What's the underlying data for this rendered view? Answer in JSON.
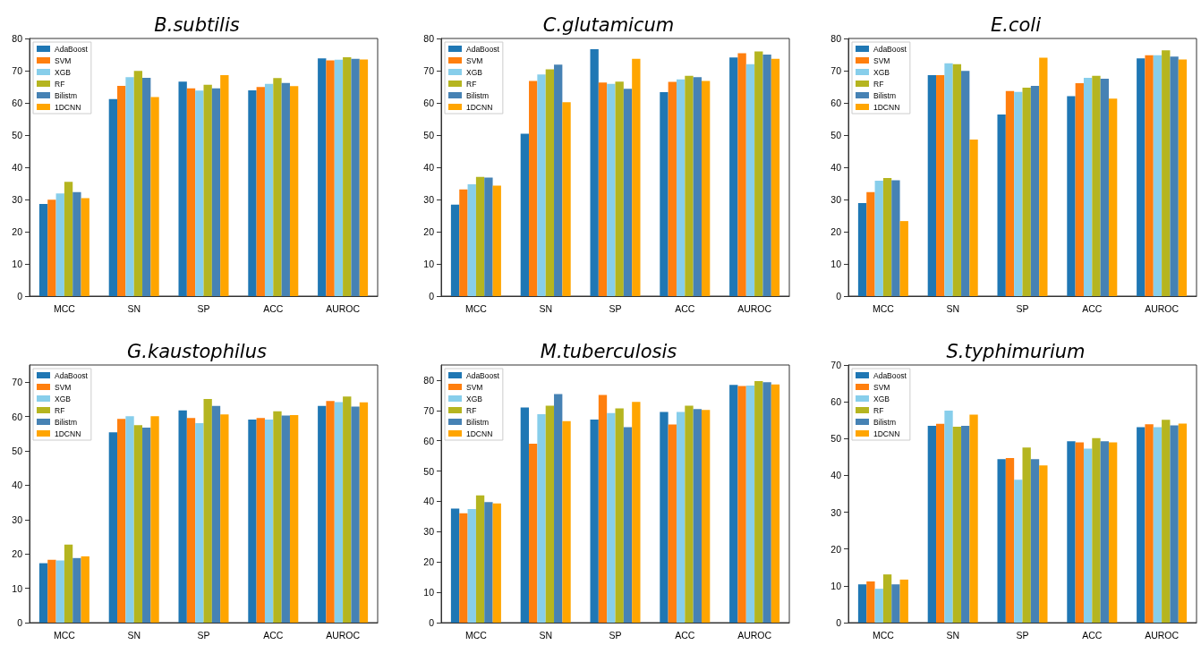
{
  "chart_data": [
    {
      "type": "bar",
      "title": "B.subtilis",
      "categories": [
        "MCC",
        "SN",
        "SP",
        "ACC",
        "AUROC"
      ],
      "ylim": [
        0,
        80
      ],
      "yticks": [
        0,
        10,
        20,
        30,
        40,
        50,
        60,
        70,
        80
      ],
      "grid": false,
      "legend": "top left",
      "series": [
        {
          "name": "AdaBoost",
          "color": "#1f77b4",
          "values": [
            28.6,
            61.2,
            66.6,
            63.9,
            73.8
          ]
        },
        {
          "name": "SVM",
          "color": "#ff7f0e",
          "values": [
            29.9,
            65.3,
            64.5,
            64.9,
            73.2
          ]
        },
        {
          "name": "XGB",
          "color": "#87ceeb",
          "values": [
            31.9,
            68.0,
            63.8,
            65.9,
            73.4
          ]
        },
        {
          "name": "RF",
          "color": "#b5b520",
          "values": [
            35.5,
            69.9,
            65.6,
            67.7,
            74.2
          ]
        },
        {
          "name": "Bilistm",
          "color": "#4682b4",
          "values": [
            32.3,
            67.8,
            64.5,
            66.2,
            73.7
          ]
        },
        {
          "name": "1DCNN",
          "color": "#ffa500",
          "values": [
            30.4,
            61.8,
            68.6,
            65.2,
            73.5
          ]
        }
      ]
    },
    {
      "type": "bar",
      "title": "C.glutamicum",
      "categories": [
        "MCC",
        "SN",
        "SP",
        "ACC",
        "AUROC"
      ],
      "ylim": [
        0,
        80
      ],
      "yticks": [
        0,
        10,
        20,
        30,
        40,
        50,
        60,
        70,
        80
      ],
      "grid": false,
      "legend": "top left",
      "series": [
        {
          "name": "AdaBoost",
          "color": "#1f77b4",
          "values": [
            28.4,
            50.4,
            76.7,
            63.3,
            74.1
          ]
        },
        {
          "name": "SVM",
          "color": "#ff7f0e",
          "values": [
            33.1,
            66.8,
            66.3,
            66.5,
            75.4
          ]
        },
        {
          "name": "XGB",
          "color": "#87ceeb",
          "values": [
            34.7,
            68.8,
            65.9,
            67.3,
            72.0
          ]
        },
        {
          "name": "RF",
          "color": "#b5b520",
          "values": [
            37.0,
            70.4,
            66.6,
            68.4,
            76.0
          ]
        },
        {
          "name": "Bilistm",
          "color": "#4682b4",
          "values": [
            36.8,
            71.9,
            64.4,
            68.0,
            75.0
          ]
        },
        {
          "name": "1DCNN",
          "color": "#ffa500",
          "values": [
            34.3,
            60.2,
            73.7,
            66.8,
            73.7
          ]
        }
      ]
    },
    {
      "type": "bar",
      "title": "E.coli",
      "categories": [
        "MCC",
        "SN",
        "SP",
        "ACC",
        "AUROC"
      ],
      "ylim": [
        0,
        80
      ],
      "yticks": [
        0,
        10,
        20,
        30,
        40,
        50,
        60,
        70,
        80
      ],
      "grid": false,
      "legend": "top left",
      "series": [
        {
          "name": "AdaBoost",
          "color": "#1f77b4",
          "values": [
            28.9,
            68.6,
            56.4,
            62.1,
            73.8
          ]
        },
        {
          "name": "SVM",
          "color": "#ff7f0e",
          "values": [
            32.3,
            68.6,
            63.7,
            66.1,
            74.8
          ]
        },
        {
          "name": "XGB",
          "color": "#87ceeb",
          "values": [
            35.8,
            72.3,
            63.4,
            67.8,
            74.8
          ]
        },
        {
          "name": "RF",
          "color": "#b5b520",
          "values": [
            36.7,
            72.0,
            64.7,
            68.4,
            76.3
          ]
        },
        {
          "name": "Bilistm",
          "color": "#4682b4",
          "values": [
            36.0,
            69.9,
            65.3,
            67.5,
            74.4
          ]
        },
        {
          "name": "1DCNN",
          "color": "#ffa500",
          "values": [
            23.3,
            48.6,
            74.0,
            61.3,
            73.5
          ]
        }
      ]
    },
    {
      "type": "bar",
      "title": "G.kaustophilus",
      "categories": [
        "MCC",
        "SN",
        "SP",
        "ACC",
        "AUROC"
      ],
      "ylim": [
        0,
        75
      ],
      "yticks": [
        0,
        10,
        20,
        30,
        40,
        50,
        60,
        70
      ],
      "grid": false,
      "legend": "top left",
      "series": [
        {
          "name": "AdaBoost",
          "color": "#1f77b4",
          "values": [
            17.3,
            55.4,
            61.8,
            59.1,
            63.1
          ]
        },
        {
          "name": "SVM",
          "color": "#ff7f0e",
          "values": [
            18.3,
            59.3,
            59.6,
            59.6,
            64.5
          ]
        },
        {
          "name": "XGB",
          "color": "#87ceeb",
          "values": [
            18.1,
            60.1,
            58.1,
            59.1,
            64.2
          ]
        },
        {
          "name": "RF",
          "color": "#b5b520",
          "values": [
            22.7,
            57.5,
            65.1,
            61.5,
            65.8
          ]
        },
        {
          "name": "Bilistm",
          "color": "#4682b4",
          "values": [
            18.8,
            56.8,
            63.1,
            60.3,
            62.9
          ]
        },
        {
          "name": "1DCNN",
          "color": "#ffa500",
          "values": [
            19.3,
            60.1,
            60.6,
            60.4,
            64.1
          ]
        }
      ]
    },
    {
      "type": "bar",
      "title": "M.tuberculosis",
      "categories": [
        "MCC",
        "SN",
        "SP",
        "ACC",
        "AUROC"
      ],
      "ylim": [
        0,
        85
      ],
      "yticks": [
        0,
        10,
        20,
        30,
        40,
        50,
        60,
        70,
        80
      ],
      "grid": false,
      "legend": "top left",
      "series": [
        {
          "name": "AdaBoost",
          "color": "#1f77b4",
          "values": [
            37.6,
            71.0,
            67.0,
            69.5,
            78.4
          ]
        },
        {
          "name": "SVM",
          "color": "#ff7f0e",
          "values": [
            36.1,
            59.0,
            75.1,
            65.4,
            78.1
          ]
        },
        {
          "name": "XGB",
          "color": "#87ceeb",
          "values": [
            37.5,
            68.8,
            69.1,
            69.5,
            78.2
          ]
        },
        {
          "name": "RF",
          "color": "#b5b520",
          "values": [
            42.0,
            71.6,
            70.7,
            71.6,
            79.7
          ]
        },
        {
          "name": "Bilistm",
          "color": "#4682b4",
          "values": [
            39.8,
            75.4,
            64.5,
            70.5,
            79.3
          ]
        },
        {
          "name": "1DCNN",
          "color": "#ffa500",
          "values": [
            39.3,
            66.5,
            72.8,
            70.2,
            78.6
          ]
        }
      ]
    },
    {
      "type": "bar",
      "title": "S.typhimurium",
      "categories": [
        "MCC",
        "SN",
        "SP",
        "ACC",
        "AUROC"
      ],
      "ylim": [
        0,
        70
      ],
      "yticks": [
        0,
        10,
        20,
        30,
        40,
        50,
        60,
        70
      ],
      "grid": false,
      "legend": "top left",
      "series": [
        {
          "name": "AdaBoost",
          "color": "#1f77b4",
          "values": [
            10.4,
            53.5,
            44.4,
            49.3,
            53.1
          ]
        },
        {
          "name": "SVM",
          "color": "#ff7f0e",
          "values": [
            11.2,
            54.0,
            44.7,
            49.0,
            53.9
          ]
        },
        {
          "name": "XGB",
          "color": "#87ceeb",
          "values": [
            9.2,
            57.6,
            38.8,
            47.3,
            53.1
          ]
        },
        {
          "name": "RF",
          "color": "#b5b520",
          "values": [
            13.1,
            53.2,
            47.6,
            50.1,
            55.1
          ]
        },
        {
          "name": "Bilistm",
          "color": "#4682b4",
          "values": [
            10.4,
            53.5,
            44.4,
            49.3,
            53.6
          ]
        },
        {
          "name": "1DCNN",
          "color": "#ffa500",
          "values": [
            11.7,
            56.5,
            42.7,
            49.0,
            54.1
          ]
        }
      ]
    }
  ]
}
